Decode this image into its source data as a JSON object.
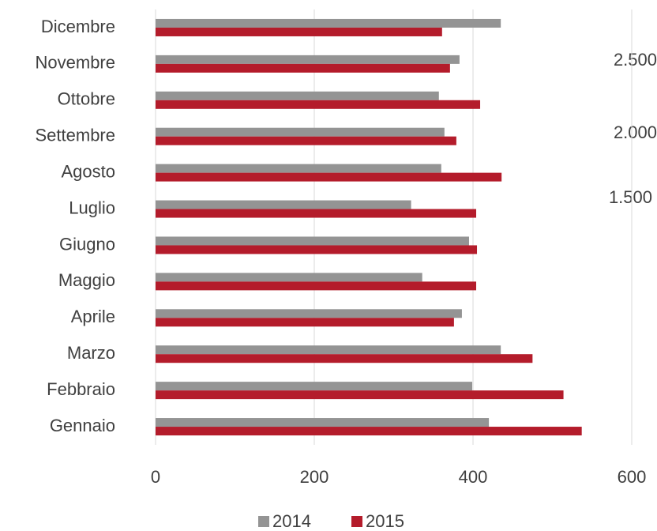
{
  "chart_data": {
    "type": "bar",
    "orientation": "horizontal",
    "categories": [
      "Gennaio",
      "Febbraio",
      "Marzo",
      "Aprile",
      "Maggio",
      "Giugno",
      "Luglio",
      "Agosto",
      "Settembre",
      "Ottobre",
      "Novembre",
      "Dicembre"
    ],
    "series": [
      {
        "name": "2014",
        "color": "#949494",
        "values": [
          420,
          399,
          435,
          386,
          336,
          395,
          322,
          360,
          364,
          357,
          383,
          435
        ]
      },
      {
        "name": "2015",
        "color": "#b41c2b",
        "values": [
          537,
          514,
          475,
          376,
          404,
          405,
          404,
          436,
          379,
          409,
          371,
          361
        ]
      }
    ],
    "xlim": [
      0,
      600
    ],
    "xticks": [
      0,
      200,
      400,
      600
    ],
    "grid": true,
    "legend": "bottom",
    "annotations": [
      "2.500",
      "2.000",
      "1.500"
    ]
  }
}
